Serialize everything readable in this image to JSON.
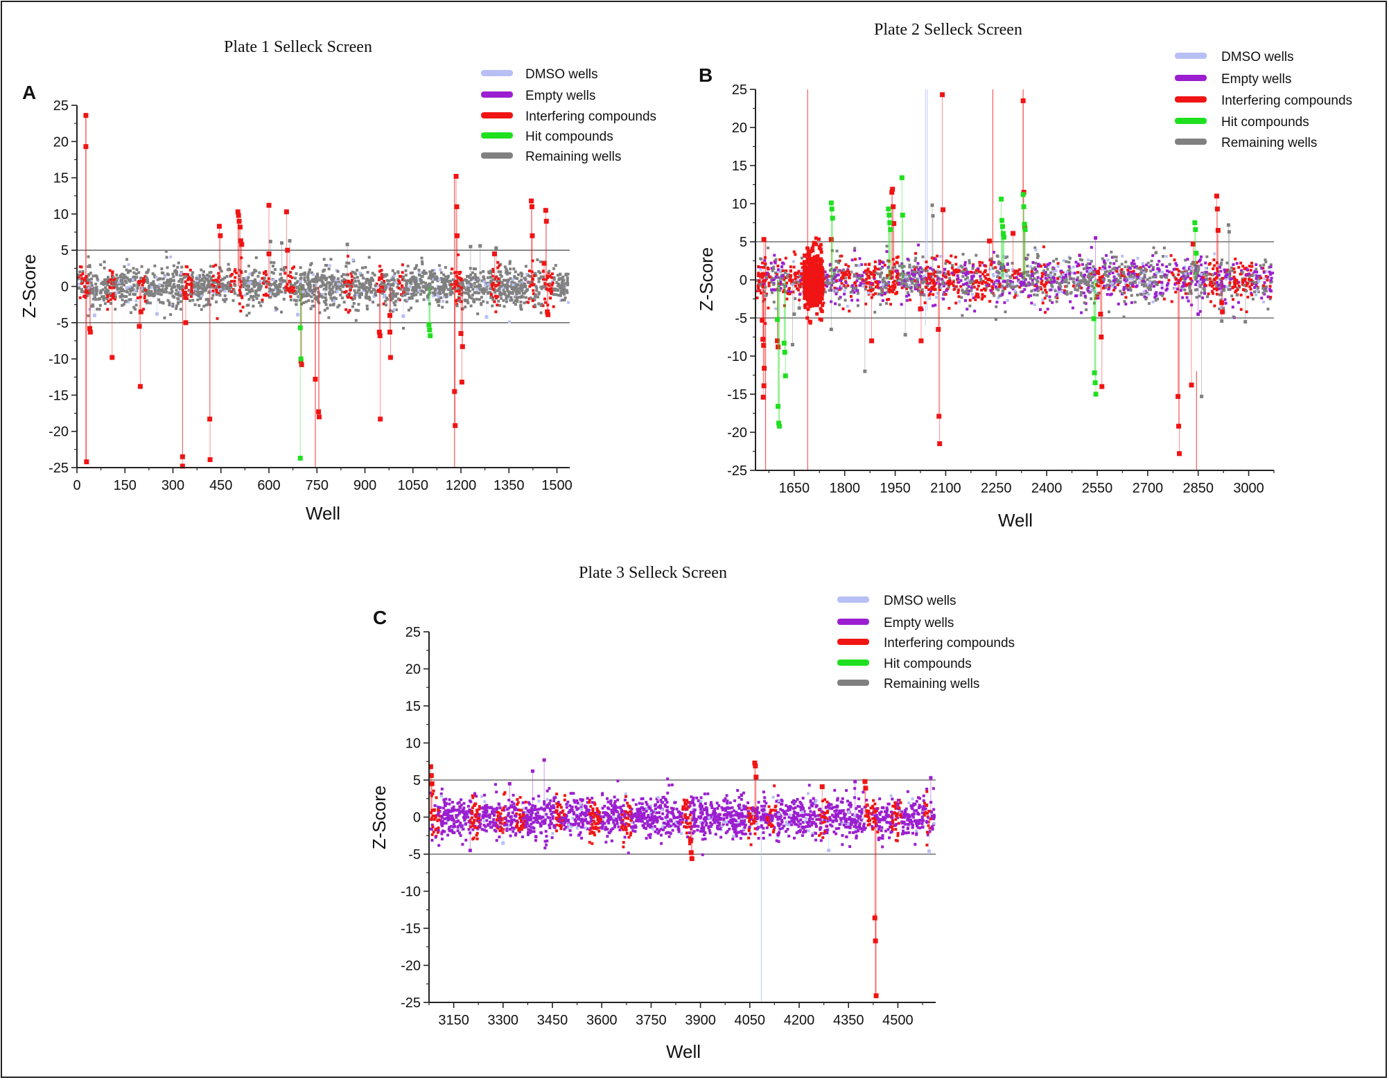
{
  "figure": {
    "legend_labels": [
      "DMSO wells",
      "Empty wells",
      "Interfering compounds",
      "Hit compounds",
      "Remaining wells"
    ],
    "colors": {
      "dmso": "#b8bff5",
      "empty": "#9b1fd0",
      "interfering": "#f01414",
      "hit": "#1fe01f",
      "remaining": "#808080",
      "threshold": "#555555",
      "axis": "#222222"
    }
  },
  "chart_data": [
    {
      "panel": "A",
      "type": "scatter",
      "title": "Plate 1 Selleck Screen",
      "xlabel": "Well",
      "ylabel": "Z-Score",
      "xlim": [
        0,
        1540
      ],
      "ylim": [
        -25,
        25
      ],
      "xticks": [
        0,
        150,
        300,
        450,
        600,
        750,
        900,
        1050,
        1200,
        1350,
        1500
      ],
      "yticks": [
        -25,
        -20,
        -15,
        -10,
        -5,
        0,
        5,
        10,
        15,
        20,
        25
      ],
      "thresholds": [
        5,
        -5
      ],
      "background_base": "remaining",
      "background_spread": 1.3,
      "interfering_clusters": [
        [
          5,
          35
        ],
        [
          95,
          120
        ],
        [
          190,
          215
        ],
        [
          330,
          360
        ],
        [
          420,
          445
        ],
        [
          480,
          520
        ],
        [
          575,
          600
        ],
        [
          650,
          680
        ],
        [
          835,
          860
        ],
        [
          935,
          960
        ],
        [
          1005,
          1025
        ],
        [
          1170,
          1205
        ],
        [
          1295,
          1320
        ],
        [
          1410,
          1430
        ],
        [
          1455,
          1490
        ]
      ],
      "interfering_points": [
        [
          28,
          23.6
        ],
        [
          28,
          19.3
        ],
        [
          30,
          -24.2
        ],
        [
          40,
          -5.8
        ],
        [
          42,
          -6.3
        ],
        [
          110,
          -9.8
        ],
        [
          195,
          -5.5
        ],
        [
          198,
          -13.8
        ],
        [
          200,
          -3.5
        ],
        [
          330,
          -23.5
        ],
        [
          330,
          -24.8
        ],
        [
          340,
          -5.0
        ],
        [
          415,
          -18.3
        ],
        [
          416,
          -23.9
        ],
        [
          445,
          8.3
        ],
        [
          448,
          7.0
        ],
        [
          503,
          10.3
        ],
        [
          505,
          9.8
        ],
        [
          507,
          9.0
        ],
        [
          510,
          8.2
        ],
        [
          512,
          6.3
        ],
        [
          515,
          5.8
        ],
        [
          600,
          11.2
        ],
        [
          600,
          4.5
        ],
        [
          655,
          10.3
        ],
        [
          658,
          5.0
        ],
        [
          700,
          -10.3
        ],
        [
          702,
          -10.8
        ],
        [
          745,
          -12.8
        ],
        [
          755,
          -17.3
        ],
        [
          757,
          -18.0
        ],
        [
          945,
          -6.3
        ],
        [
          947,
          -6.8
        ],
        [
          948,
          -18.3
        ],
        [
          978,
          -4.0
        ],
        [
          978,
          -6.3
        ],
        [
          980,
          -9.8
        ],
        [
          1185,
          15.2
        ],
        [
          1187,
          11.0
        ],
        [
          1188,
          7.0
        ],
        [
          1180,
          -14.5
        ],
        [
          1182,
          -19.2
        ],
        [
          1200,
          -6.5
        ],
        [
          1205,
          -8.3
        ],
        [
          1203,
          -13.2
        ],
        [
          1305,
          4.5
        ],
        [
          1420,
          11.8
        ],
        [
          1422,
          11.0
        ],
        [
          1423,
          7.0
        ],
        [
          1465,
          10.5
        ],
        [
          1467,
          9.0
        ],
        [
          1460,
          3.2
        ],
        [
          1470,
          -3.5
        ],
        [
          1472,
          -3.9
        ]
      ],
      "hit_points": [
        [
          698,
          -5.7
        ],
        [
          700,
          -10.0
        ],
        [
          698,
          -23.7
        ],
        [
          1100,
          -5.3
        ],
        [
          1102,
          -6.0
        ],
        [
          1104,
          -6.8
        ]
      ],
      "remaining_outliers": [
        [
          605,
          6.2
        ],
        [
          640,
          6.0
        ],
        [
          665,
          6.3
        ],
        [
          845,
          5.8
        ],
        [
          1230,
          5.5
        ],
        [
          1310,
          5.3
        ],
        [
          1260,
          5.6
        ]
      ],
      "dmso_outliers": [
        [
          55,
          -4.0
        ],
        [
          250,
          -3.8
        ],
        [
          690,
          -3.9
        ],
        [
          1020,
          -4.1
        ],
        [
          1280,
          -4.2
        ]
      ],
      "tall_lines": [
        {
          "x": 28,
          "y1": 24,
          "y2": -24.5,
          "color": "interfering"
        },
        {
          "x": 1180,
          "y1": 15,
          "y2": -25,
          "color": "interfering"
        },
        {
          "x": 745,
          "y1": -2,
          "y2": -25,
          "color": "interfering"
        }
      ]
    },
    {
      "panel": "B",
      "type": "scatter",
      "title": "Plate 2 Selleck Screen",
      "xlabel": "Well",
      "ylabel": "Z-Score",
      "xlim": [
        1535,
        3075
      ],
      "ylim": [
        -25,
        25
      ],
      "xticks": [
        1650,
        1800,
        1950,
        2100,
        2250,
        2400,
        2550,
        2700,
        2850,
        3000
      ],
      "yticks": [
        -25,
        -20,
        -15,
        -10,
        -5,
        0,
        5,
        10,
        15,
        20,
        25
      ],
      "thresholds": [
        5,
        -5
      ],
      "background_base": "mixed",
      "background_spread": 1.4,
      "interfering_clusters": [
        [
          1540,
          1580
        ],
        [
          1620,
          1690
        ],
        [
          1690,
          1740
        ],
        [
          1790,
          1820
        ],
        [
          1860,
          1900
        ],
        [
          1930,
          1960
        ],
        [
          2040,
          2070
        ],
        [
          2100,
          2140
        ],
        [
          2180,
          2240
        ],
        [
          2300,
          2320
        ],
        [
          2380,
          2400
        ],
        [
          2545,
          2565
        ],
        [
          2770,
          2800
        ],
        [
          2880,
          2910
        ],
        [
          2950,
          3010
        ]
      ],
      "dense_red": [
        1680,
        1735
      ],
      "interfering_points": [
        [
          1560,
          5.3
        ],
        [
          1555,
          -5.3
        ],
        [
          1557,
          -7.8
        ],
        [
          1559,
          -8.6
        ],
        [
          1561,
          -11.6
        ],
        [
          1560,
          -13.9
        ],
        [
          1558,
          -15.4
        ],
        [
          1600,
          -8.0
        ],
        [
          1602,
          -8.8
        ],
        [
          1710,
          4.8
        ],
        [
          1760,
          5.3
        ],
        [
          1880,
          -8.0
        ],
        [
          1940,
          11.5
        ],
        [
          1942,
          11.9
        ],
        [
          1944,
          9.6
        ],
        [
          1946,
          7.4
        ],
        [
          2025,
          -3.8
        ],
        [
          2027,
          -8.0
        ],
        [
          2078,
          -6.5
        ],
        [
          2080,
          -17.9
        ],
        [
          2082,
          -21.5
        ],
        [
          2090,
          24.3
        ],
        [
          2092,
          9.2
        ],
        [
          2230,
          5.1
        ],
        [
          2300,
          6.1
        ],
        [
          2330,
          23.5
        ],
        [
          2332,
          11.5
        ],
        [
          2335,
          6.9
        ],
        [
          2560,
          -4.5
        ],
        [
          2562,
          -7.5
        ],
        [
          2564,
          -14.0
        ],
        [
          2790,
          -15.3
        ],
        [
          2792,
          -19.2
        ],
        [
          2794,
          -22.8
        ],
        [
          2830,
          -13.8
        ],
        [
          2835,
          4.7
        ],
        [
          2905,
          11.0
        ],
        [
          2907,
          9.3
        ],
        [
          2909,
          6.5
        ],
        [
          2920,
          -3.0
        ],
        [
          2922,
          -4.2
        ]
      ],
      "hit_points": [
        [
          1600,
          -5.2
        ],
        [
          1602,
          -16.6
        ],
        [
          1604,
          -18.8
        ],
        [
          1606,
          -19.2
        ],
        [
          1620,
          -8.3
        ],
        [
          1622,
          -9.5
        ],
        [
          1624,
          -12.6
        ],
        [
          1760,
          10.1
        ],
        [
          1762,
          9.3
        ],
        [
          1764,
          8.1
        ],
        [
          1930,
          9.3
        ],
        [
          1932,
          8.5
        ],
        [
          1934,
          7.5
        ],
        [
          1936,
          6.6
        ],
        [
          1970,
          13.4
        ],
        [
          1972,
          8.5
        ],
        [
          2265,
          10.6
        ],
        [
          2267,
          7.8
        ],
        [
          2269,
          7.0
        ],
        [
          2271,
          6.1
        ],
        [
          2273,
          5.6
        ],
        [
          2330,
          11.2
        ],
        [
          2332,
          9.6
        ],
        [
          2334,
          7.3
        ],
        [
          2336,
          6.6
        ],
        [
          2540,
          -5.1
        ],
        [
          2542,
          -12.2
        ],
        [
          2544,
          -13.5
        ],
        [
          2546,
          -15.0
        ],
        [
          2840,
          7.5
        ],
        [
          2842,
          6.6
        ],
        [
          2844,
          3.5
        ]
      ],
      "remaining_outliers": [
        [
          1645,
          -8.5
        ],
        [
          1650,
          -4.5
        ],
        [
          1665,
          -3.7
        ],
        [
          1760,
          -6.5
        ],
        [
          1860,
          -12.0
        ],
        [
          2060,
          9.8
        ],
        [
          2062,
          8.4
        ],
        [
          1980,
          -7.2
        ],
        [
          2940,
          7.2
        ],
        [
          2942,
          6.3
        ],
        [
          2860,
          -15.3
        ],
        [
          2920,
          -5.4
        ],
        [
          2990,
          -5.5
        ]
      ],
      "empty_outliers": [
        [
          2545,
          5.5
        ],
        [
          2850,
          -4.5
        ]
      ],
      "tall_lines": [
        {
          "x": 1565,
          "y1": 5,
          "y2": -25,
          "color": "interfering"
        },
        {
          "x": 1690,
          "y1": 25,
          "y2": -25,
          "color": "interfering"
        },
        {
          "x": 2040,
          "y1": 25,
          "y2": -6,
          "color": "dmso"
        },
        {
          "x": 2045,
          "y1": 25,
          "y2": -4,
          "color": "dmso"
        },
        {
          "x": 2240,
          "y1": 25,
          "y2": 2,
          "color": "interfering"
        },
        {
          "x": 2330,
          "y1": 25,
          "y2": 10,
          "color": "interfering"
        },
        {
          "x": 2845,
          "y1": -12,
          "y2": -25,
          "color": "interfering"
        }
      ]
    },
    {
      "panel": "C",
      "type": "scatter",
      "title": "Plate 3 Selleck Screen",
      "xlabel": "Well",
      "ylabel": "Z-Score",
      "xlim": [
        3075,
        4615
      ],
      "ylim": [
        -25,
        25
      ],
      "xticks": [
        3150,
        3300,
        3450,
        3600,
        3750,
        3900,
        4050,
        4200,
        4350,
        4500
      ],
      "yticks": [
        -25,
        -20,
        -15,
        -10,
        -5,
        0,
        5,
        10,
        15,
        20,
        25
      ],
      "thresholds": [
        5,
        -5
      ],
      "background_base": "empty",
      "background_spread": 1.3,
      "interfering_clusters": [
        [
          3080,
          3110
        ],
        [
          3200,
          3230
        ],
        [
          3280,
          3310
        ],
        [
          3340,
          3370
        ],
        [
          3460,
          3490
        ],
        [
          3560,
          3600
        ],
        [
          3660,
          3690
        ],
        [
          3840,
          3870
        ],
        [
          4040,
          4070
        ],
        [
          4100,
          4130
        ],
        [
          4260,
          4290
        ],
        [
          4400,
          4440
        ],
        [
          4480,
          4510
        ],
        [
          4580,
          4600
        ]
      ],
      "interfering_points": [
        [
          3080,
          6.8
        ],
        [
          3082,
          5.6
        ],
        [
          3084,
          4.5
        ],
        [
          3870,
          -3.2
        ],
        [
          3872,
          -4.8
        ],
        [
          3874,
          -5.6
        ],
        [
          4065,
          7.3
        ],
        [
          4067,
          6.9
        ],
        [
          4069,
          5.4
        ],
        [
          4270,
          4.1
        ],
        [
          4400,
          4.8
        ],
        [
          4402,
          3.9
        ],
        [
          4430,
          -13.6
        ],
        [
          4432,
          -16.7
        ],
        [
          4434,
          -24.1
        ]
      ],
      "hit_points": [],
      "empty_outliers": [
        [
          3425,
          7.7
        ],
        [
          3390,
          6.2
        ],
        [
          3200,
          -4.5
        ],
        [
          3320,
          4.5
        ],
        [
          4370,
          4.8
        ],
        [
          4600,
          5.3
        ]
      ],
      "dmso_outliers": [
        [
          3300,
          -3.5
        ],
        [
          4290,
          -4.5
        ],
        [
          4595,
          -4.6
        ]
      ],
      "tall_lines": [
        {
          "x": 4085,
          "y1": -2,
          "y2": -25,
          "color": "dmso"
        },
        {
          "x": 4432,
          "y1": -13,
          "y2": -24,
          "color": "interfering"
        }
      ]
    }
  ]
}
